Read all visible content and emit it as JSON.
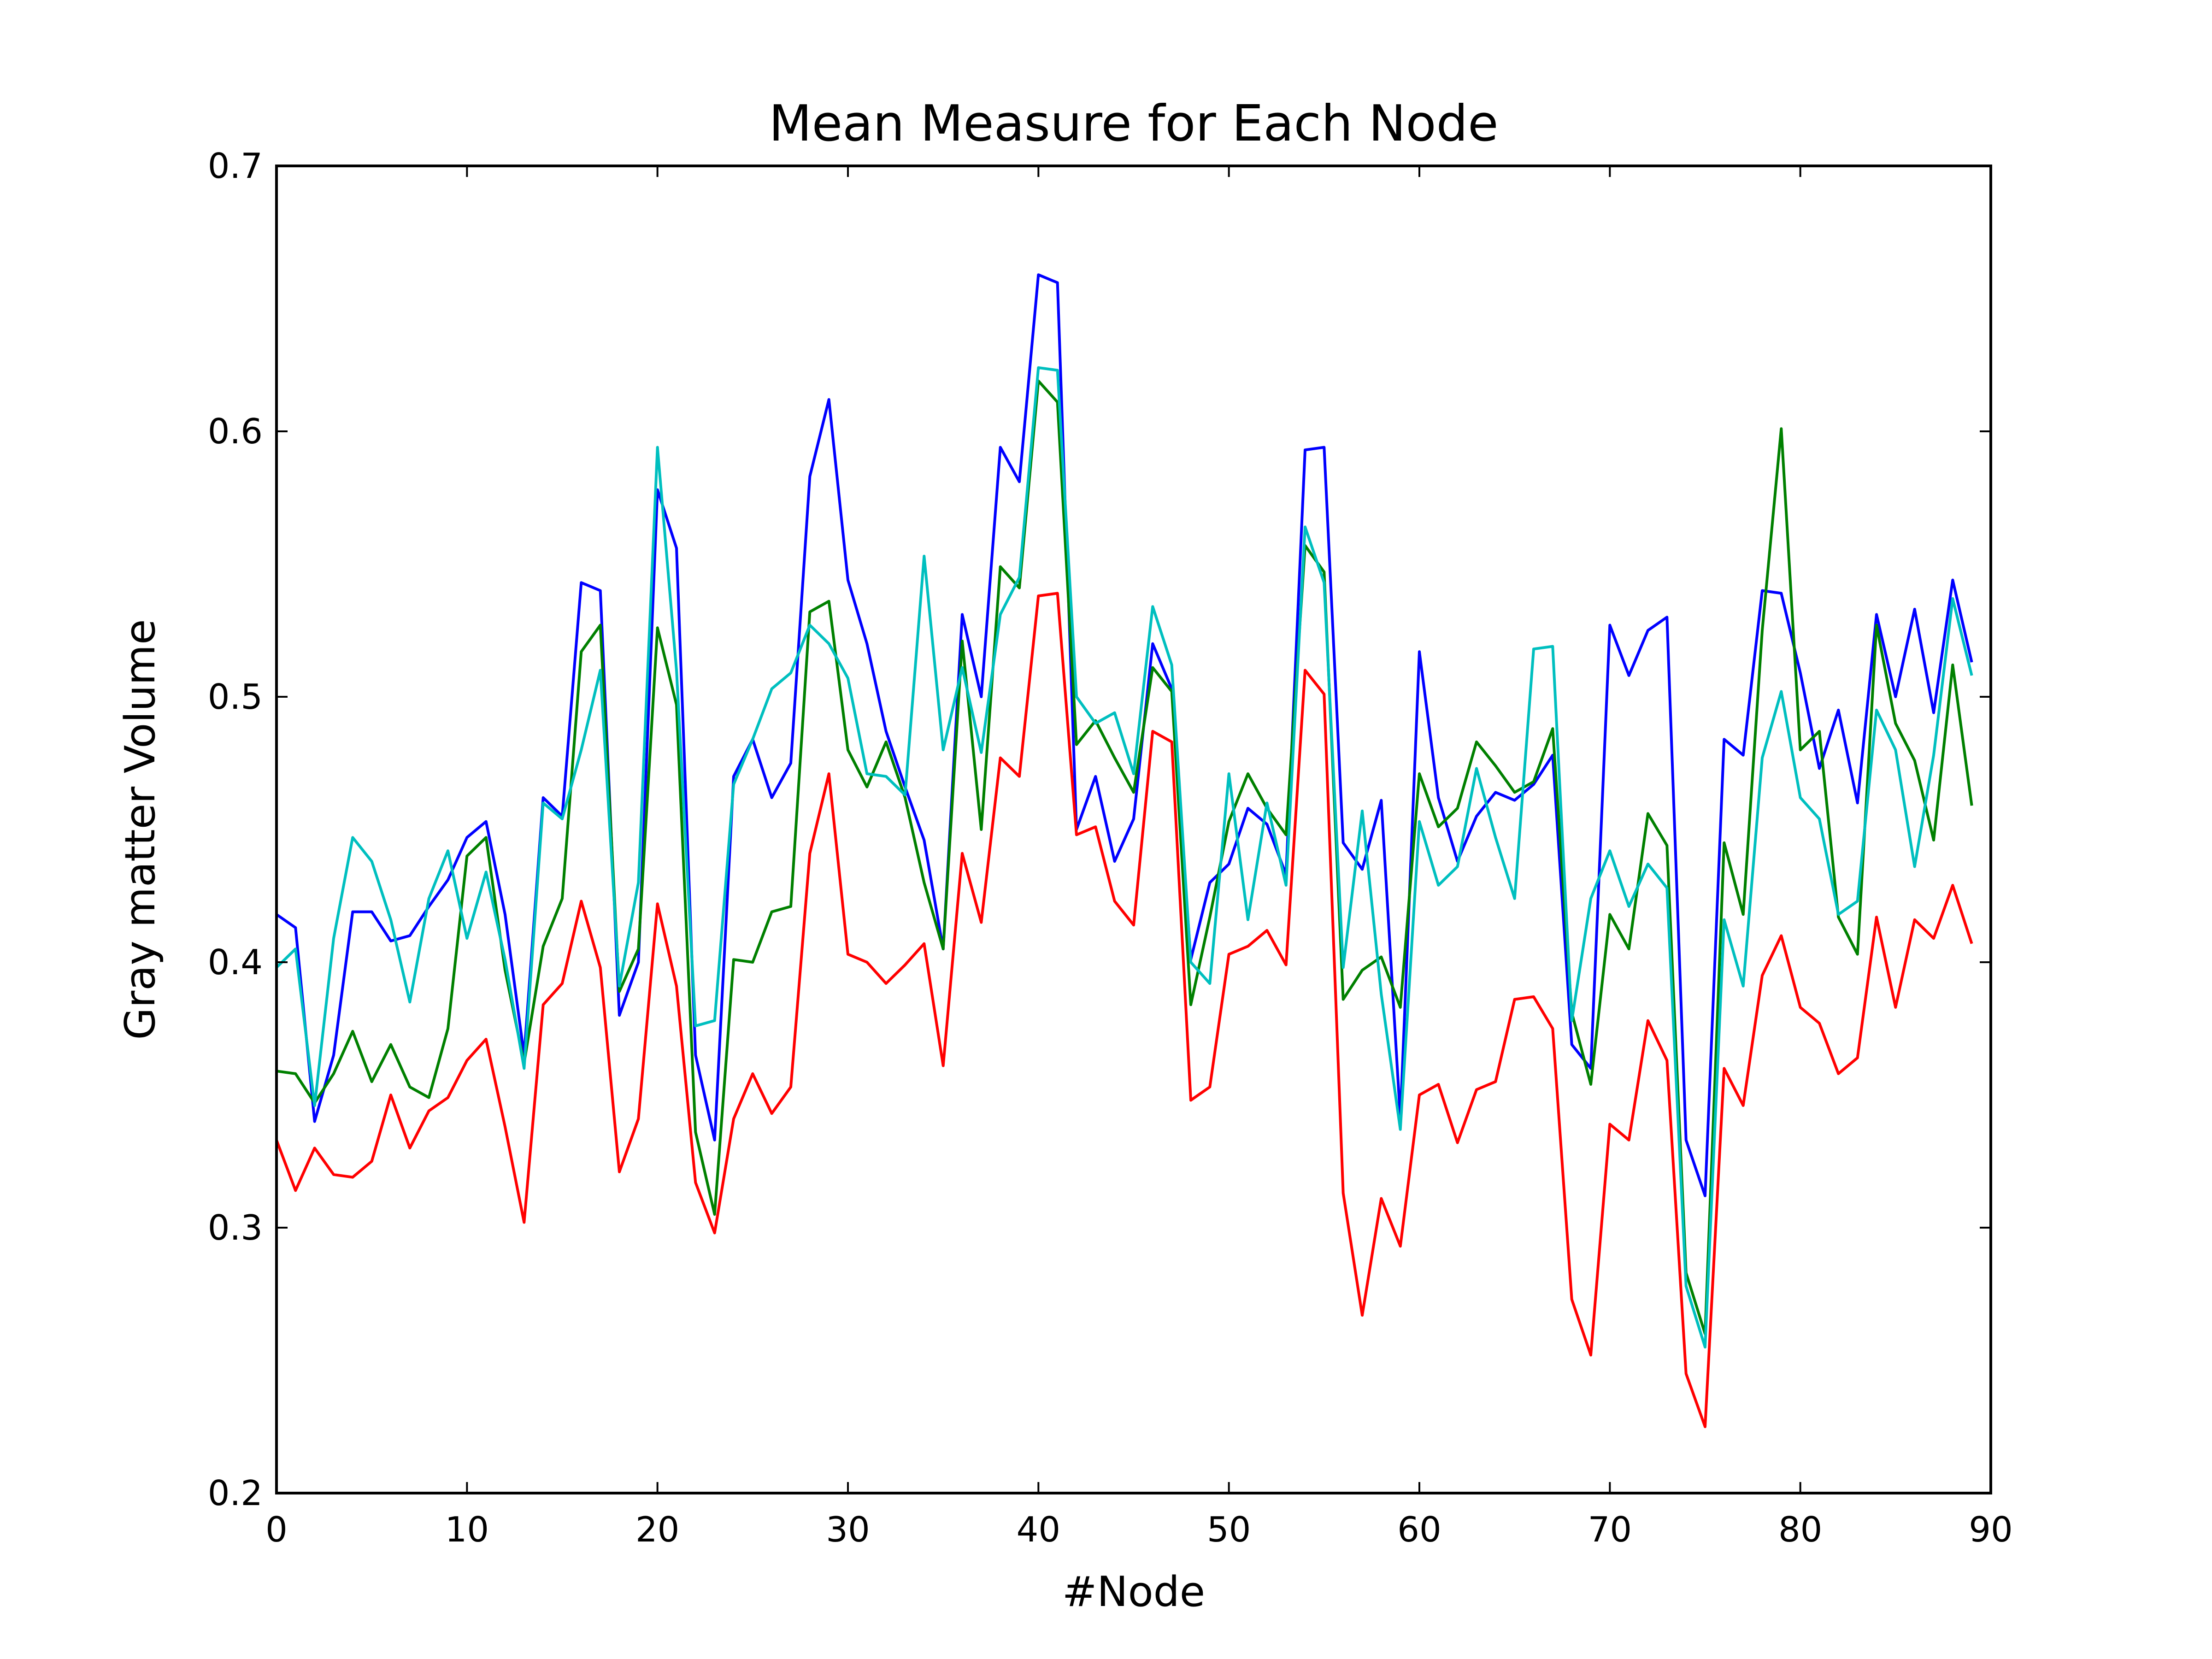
{
  "chart_data": {
    "type": "line",
    "title": "Mean Measure for Each Node",
    "xlabel": "#Node",
    "ylabel": "Gray matter Volume",
    "xlim": [
      0,
      90
    ],
    "ylim": [
      0.2,
      0.7
    ],
    "xticks": [
      0,
      10,
      20,
      30,
      40,
      50,
      60,
      70,
      80,
      90
    ],
    "yticks": [
      0.2,
      0.3,
      0.4,
      0.5,
      0.6,
      0.7
    ],
    "grid": false,
    "series": [
      {
        "color": "#0000ff",
        "values": [
          0.418,
          0.413,
          0.34,
          0.365,
          0.419,
          0.419,
          0.408,
          0.41,
          0.421,
          0.431,
          0.447,
          0.453,
          0.418,
          0.365,
          0.462,
          0.455,
          0.543,
          0.54,
          0.38,
          0.4,
          0.578,
          0.556,
          0.365,
          0.333,
          0.47,
          0.484,
          0.462,
          0.475,
          0.583,
          0.612,
          0.544,
          0.52,
          0.487,
          0.466,
          0.446,
          0.405,
          0.531,
          0.5,
          0.594,
          0.581,
          0.659,
          0.656,
          0.45,
          0.47,
          0.438,
          0.454,
          0.52,
          0.503,
          0.401,
          0.43,
          0.437,
          0.458,
          0.452,
          0.433,
          0.593,
          0.594,
          0.445,
          0.435,
          0.461,
          0.341,
          0.517,
          0.462,
          0.438,
          0.455,
          0.464,
          0.461,
          0.467,
          0.478,
          0.369,
          0.36,
          0.527,
          0.508,
          0.525,
          0.53,
          0.333,
          0.312,
          0.484,
          0.478,
          0.54,
          0.539,
          0.509,
          0.473,
          0.495,
          0.46,
          0.531,
          0.5,
          0.533,
          0.494,
          0.544,
          0.513
        ]
      },
      {
        "color": "#008000",
        "values": [
          0.359,
          0.358,
          0.347,
          0.358,
          0.374,
          0.355,
          0.369,
          0.353,
          0.349,
          0.375,
          0.44,
          0.447,
          0.397,
          0.362,
          0.406,
          0.424,
          0.517,
          0.527,
          0.389,
          0.405,
          0.526,
          0.497,
          0.336,
          0.305,
          0.401,
          0.4,
          0.419,
          0.421,
          0.532,
          0.536,
          0.48,
          0.466,
          0.483,
          0.462,
          0.43,
          0.405,
          0.521,
          0.45,
          0.549,
          0.541,
          0.619,
          0.611,
          0.482,
          0.491,
          0.477,
          0.464,
          0.511,
          0.502,
          0.384,
          0.417,
          0.453,
          0.471,
          0.458,
          0.448,
          0.557,
          0.547,
          0.386,
          0.397,
          0.402,
          0.383,
          0.471,
          0.451,
          0.458,
          0.483,
          0.474,
          0.464,
          0.468,
          0.488,
          0.381,
          0.354,
          0.418,
          0.405,
          0.456,
          0.444,
          0.283,
          0.26,
          0.445,
          0.418,
          0.525,
          0.601,
          0.48,
          0.487,
          0.417,
          0.403,
          0.527,
          0.49,
          0.476,
          0.446,
          0.512,
          0.459
        ]
      },
      {
        "color": "#00bfbf",
        "values": [
          0.398,
          0.405,
          0.346,
          0.409,
          0.447,
          0.438,
          0.416,
          0.385,
          0.424,
          0.442,
          0.409,
          0.434,
          0.401,
          0.36,
          0.46,
          0.454,
          0.48,
          0.51,
          0.391,
          0.43,
          0.594,
          0.51,
          0.376,
          0.378,
          0.467,
          0.484,
          0.503,
          0.509,
          0.527,
          0.52,
          0.507,
          0.471,
          0.47,
          0.463,
          0.553,
          0.48,
          0.511,
          0.479,
          0.531,
          0.545,
          0.624,
          0.623,
          0.5,
          0.49,
          0.494,
          0.471,
          0.534,
          0.512,
          0.4,
          0.392,
          0.471,
          0.416,
          0.46,
          0.429,
          0.564,
          0.543,
          0.398,
          0.457,
          0.388,
          0.337,
          0.453,
          0.429,
          0.436,
          0.473,
          0.447,
          0.424,
          0.518,
          0.519,
          0.378,
          0.424,
          0.442,
          0.421,
          0.437,
          0.428,
          0.278,
          0.255,
          0.416,
          0.391,
          0.477,
          0.502,
          0.462,
          0.454,
          0.418,
          0.423,
          0.495,
          0.48,
          0.436,
          0.478,
          0.537,
          0.508
        ]
      },
      {
        "color": "#ff0000",
        "values": [
          0.333,
          0.314,
          0.33,
          0.32,
          0.319,
          0.325,
          0.35,
          0.33,
          0.344,
          0.349,
          0.363,
          0.371,
          0.338,
          0.302,
          0.384,
          0.392,
          0.423,
          0.398,
          0.321,
          0.341,
          0.422,
          0.391,
          0.317,
          0.298,
          0.341,
          0.358,
          0.343,
          0.353,
          0.441,
          0.471,
          0.403,
          0.4,
          0.392,
          0.399,
          0.407,
          0.361,
          0.441,
          0.415,
          0.477,
          0.47,
          0.538,
          0.539,
          0.448,
          0.451,
          0.423,
          0.414,
          0.487,
          0.483,
          0.348,
          0.353,
          0.403,
          0.406,
          0.412,
          0.399,
          0.51,
          0.501,
          0.313,
          0.267,
          0.311,
          0.293,
          0.35,
          0.354,
          0.332,
          0.352,
          0.355,
          0.386,
          0.387,
          0.375,
          0.273,
          0.252,
          0.339,
          0.333,
          0.378,
          0.363,
          0.245,
          0.225,
          0.36,
          0.346,
          0.395,
          0.41,
          0.383,
          0.377,
          0.358,
          0.364,
          0.417,
          0.383,
          0.416,
          0.409,
          0.429,
          0.407
        ]
      }
    ]
  }
}
